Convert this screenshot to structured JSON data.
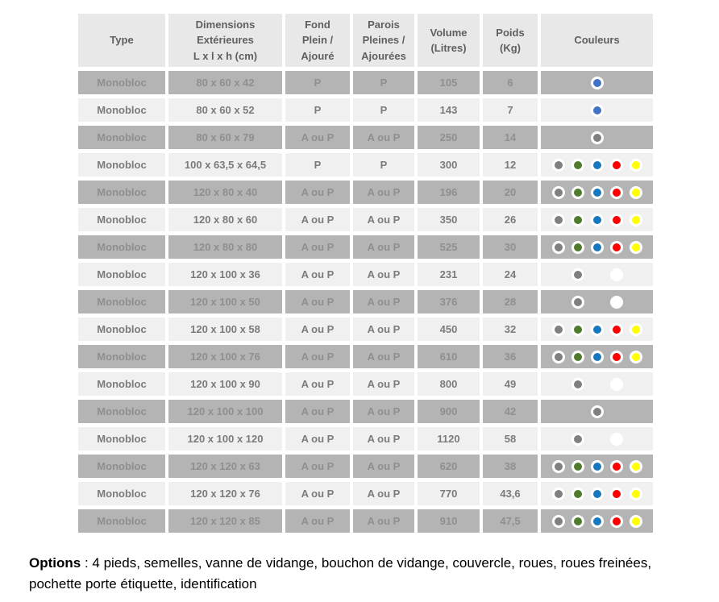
{
  "palette": {
    "gray": "#808080",
    "green": "#4e7b2c",
    "blue": "#1878be",
    "royal_blue": "#4472c4",
    "red": "#fe0000",
    "yellow": "#ffff00",
    "white": "#ffffff"
  },
  "table": {
    "headers": [
      "Type",
      "Dimensions\nExtérieures\nL x l x h (cm)",
      "Fond\nPlein /\nAjouré",
      "Parois\nPleines /\nAjourées",
      "Volume\n(Litres)",
      "Poids\n(Kg)",
      "Couleurs"
    ],
    "rows": [
      {
        "type": "Monobloc",
        "dimensions": "80 x 60 x 42",
        "fond": "P",
        "parois": "P",
        "volume": "105",
        "poids": "6",
        "colors": [
          "",
          "",
          "royal_blue",
          "",
          ""
        ]
      },
      {
        "type": "Monobloc",
        "dimensions": "80 x 60 x 52",
        "fond": "P",
        "parois": "P",
        "volume": "143",
        "poids": "7",
        "colors": [
          "",
          "",
          "royal_blue",
          "",
          ""
        ]
      },
      {
        "type": "Monobloc",
        "dimensions": "80 x 60 x 79",
        "fond": "A ou P",
        "parois": "A ou P",
        "volume": "250",
        "poids": "14",
        "colors": [
          "",
          "",
          "gray",
          "",
          ""
        ]
      },
      {
        "type": "Monobloc",
        "dimensions": "100 x 63,5 x 64,5",
        "fond": "P",
        "parois": "P",
        "volume": "300",
        "poids": "12",
        "colors": [
          "gray",
          "green",
          "blue",
          "red",
          "yellow"
        ]
      },
      {
        "type": "Monobloc",
        "dimensions": "120 x 80 x 40",
        "fond": "A ou P",
        "parois": "A ou P",
        "volume": "196",
        "poids": "20",
        "colors": [
          "gray",
          "green",
          "blue",
          "red",
          "yellow"
        ]
      },
      {
        "type": "Monobloc",
        "dimensions": "120 x 80 x 60",
        "fond": "A ou P",
        "parois": "A ou P",
        "volume": "350",
        "poids": "26",
        "colors": [
          "gray",
          "green",
          "blue",
          "red",
          "yellow"
        ]
      },
      {
        "type": "Monobloc",
        "dimensions": "120 x 80 x 80",
        "fond": "A ou P",
        "parois": "A ou P",
        "volume": "525",
        "poids": "30",
        "colors": [
          "gray",
          "green",
          "blue",
          "red",
          "yellow"
        ]
      },
      {
        "type": "Monobloc",
        "dimensions": "120 x 100 x 36",
        "fond": "A ou P",
        "parois": "A ou P",
        "volume": "231",
        "poids": "24",
        "colors": [
          "",
          "gray",
          "",
          "white",
          ""
        ]
      },
      {
        "type": "Monobloc",
        "dimensions": "120 x 100 x 50",
        "fond": "A ou P",
        "parois": "A ou P",
        "volume": "376",
        "poids": "28",
        "colors": [
          "",
          "gray",
          "",
          "white",
          ""
        ]
      },
      {
        "type": "Monobloc",
        "dimensions": "120 x 100 x 58",
        "fond": "A ou P",
        "parois": "A ou P",
        "volume": "450",
        "poids": "32",
        "colors": [
          "gray",
          "green",
          "blue",
          "red",
          "yellow"
        ]
      },
      {
        "type": "Monobloc",
        "dimensions": "120 x 100 x 76",
        "fond": "A ou P",
        "parois": "A ou P",
        "volume": "610",
        "poids": "36",
        "colors": [
          "gray",
          "green",
          "blue",
          "red",
          "yellow"
        ]
      },
      {
        "type": "Monobloc",
        "dimensions": "120 x 100 x 90",
        "fond": "A ou P",
        "parois": "A ou P",
        "volume": "800",
        "poids": "49",
        "colors": [
          "",
          "gray",
          "",
          "white",
          ""
        ]
      },
      {
        "type": "Monobloc",
        "dimensions": "120 x 100 x 100",
        "fond": "A ou P",
        "parois": "A ou P",
        "volume": "900",
        "poids": "42",
        "colors": [
          "",
          "",
          "gray",
          "",
          ""
        ]
      },
      {
        "type": "Monobloc",
        "dimensions": "120 x 100 x 120",
        "fond": "A ou P",
        "parois": "A ou P",
        "volume": "1120",
        "poids": "58",
        "colors": [
          "",
          "gray",
          "",
          "white",
          ""
        ]
      },
      {
        "type": "Monobloc",
        "dimensions": "120 x 120 x 63",
        "fond": "A ou P",
        "parois": "A ou P",
        "volume": "620",
        "poids": "38",
        "colors": [
          "gray",
          "green",
          "blue",
          "red",
          "yellow"
        ]
      },
      {
        "type": "Monobloc",
        "dimensions": "120 x 120 x 76",
        "fond": "A ou P",
        "parois": "A ou P",
        "volume": "770",
        "poids": "43,6",
        "colors": [
          "gray",
          "green",
          "blue",
          "red",
          "yellow"
        ]
      },
      {
        "type": "Monobloc",
        "dimensions": "120 x 120 x 85",
        "fond": "A ou P",
        "parois": "A ou P",
        "volume": "910",
        "poids": "47,5",
        "colors": [
          "gray",
          "green",
          "blue",
          "red",
          "yellow"
        ]
      }
    ]
  },
  "footer": {
    "label": "Options",
    "text": " : 4 pieds, semelles, vanne de vidange, bouchon de vidange, couvercle, roues, roues freinées, pochette porte étiquette, identification"
  }
}
